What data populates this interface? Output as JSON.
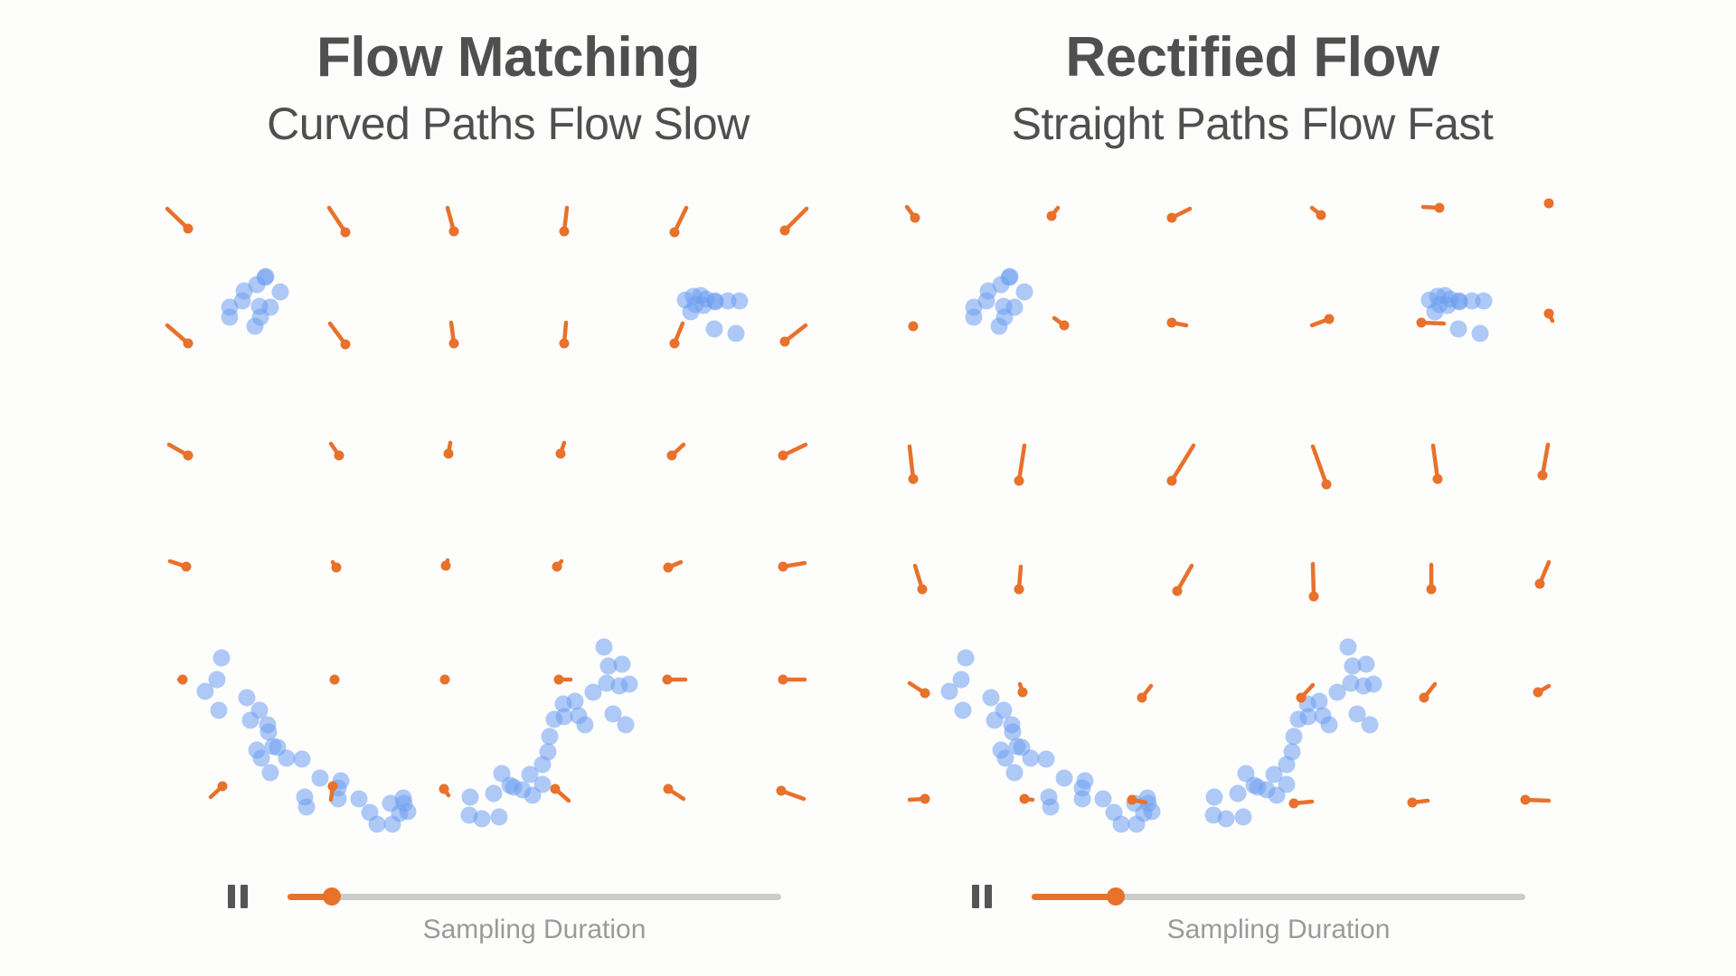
{
  "colors": {
    "arrow": "#e8712b",
    "point": "#6d9ff0",
    "title": "#4f4f4f",
    "label": "#9a9a9a",
    "track": "#cccccc"
  },
  "icons": {
    "pause": "pause-icon"
  },
  "panels": [
    {
      "id": "flow-matching",
      "title": "Flow Matching",
      "subtitle": "Curved Paths Flow Slow",
      "slider_label": "Sampling Duration",
      "progress": 0.09
    },
    {
      "id": "rectified-flow",
      "title": "Rectified Flow",
      "subtitle": "Straight Paths Flow Fast",
      "slider_label": "Sampling Duration",
      "progress": 0.17
    }
  ]
}
